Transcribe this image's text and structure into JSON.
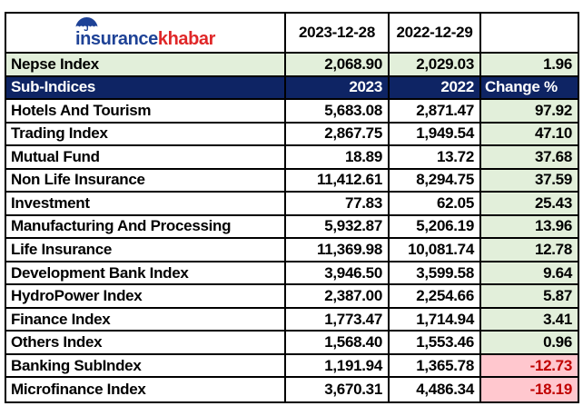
{
  "brand": {
    "word_primary": "insurance",
    "word_secondary": "khabar",
    "umbrella_icon": "umbrella-icon"
  },
  "colors": {
    "navy_header": "#0e2464",
    "positive_bg": "#e2efda",
    "negative_bg": "#ffc7ce",
    "negative_text": "#c00000",
    "logo_blue": "#1e4296",
    "logo_red": "#e02728",
    "grid_border": "#000000"
  },
  "chart_data": {
    "type": "table",
    "date_columns": [
      "2023-12-28",
      "2022-12-29"
    ],
    "nepse_row": {
      "label": "Nepse Index",
      "v2023": "2,068.90",
      "v2022": "2,029.03",
      "change": "1.96"
    },
    "subheader": {
      "label": "Sub-Indices",
      "col_2023": "2023",
      "col_2022": "2022",
      "col_change": "Change %"
    },
    "rows": [
      {
        "label": "Hotels And Tourism",
        "v2023": "5,683.08",
        "v2022": "2,871.47",
        "change": "97.92"
      },
      {
        "label": "Trading Index",
        "v2023": "2,867.75",
        "v2022": "1,949.54",
        "change": "47.10"
      },
      {
        "label": "Mutual Fund",
        "v2023": "18.89",
        "v2022": "13.72",
        "change": "37.68"
      },
      {
        "label": "Non Life Insurance",
        "v2023": "11,412.61",
        "v2022": "8,294.75",
        "change": "37.59"
      },
      {
        "label": "Investment",
        "v2023": "77.83",
        "v2022": "62.05",
        "change": "25.43"
      },
      {
        "label": "Manufacturing And Processing",
        "v2023": "5,932.87",
        "v2022": "5,206.19",
        "change": "13.96"
      },
      {
        "label": "Life Insurance",
        "v2023": "11,369.98",
        "v2022": "10,081.74",
        "change": "12.78"
      },
      {
        "label": "Development Bank Index",
        "v2023": "3,946.50",
        "v2022": "3,599.58",
        "change": "9.64"
      },
      {
        "label": "HydroPower Index",
        "v2023": "2,387.00",
        "v2022": "2,254.66",
        "change": "5.87"
      },
      {
        "label": "Finance Index",
        "v2023": "1,773.47",
        "v2022": "1,714.94",
        "change": "3.41"
      },
      {
        "label": "Others Index",
        "v2023": "1,568.40",
        "v2022": "1,553.46",
        "change": "0.96"
      },
      {
        "label": "Banking SubIndex",
        "v2023": "1,191.94",
        "v2022": "1,365.78",
        "change": "-12.73"
      },
      {
        "label": "Microfinance Index",
        "v2023": "3,670.31",
        "v2022": "4,486.34",
        "change": "-18.19"
      }
    ]
  }
}
